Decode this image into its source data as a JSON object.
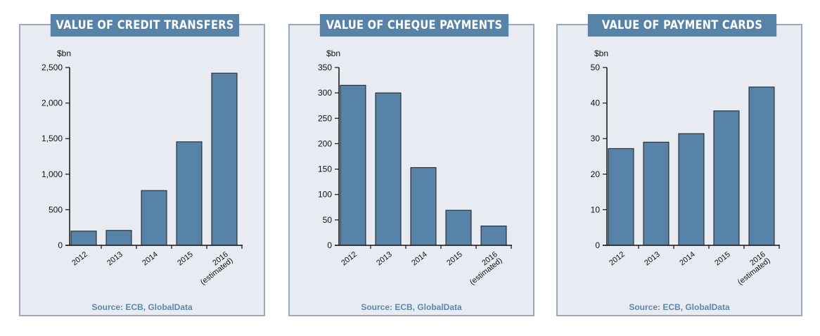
{
  "source_text": "Source: ECB, GlobalData",
  "bar_color": "#5683a7",
  "title_bg": "#5683a7",
  "panel_bg": "#e8ecf2",
  "chart_data": [
    {
      "type": "bar",
      "title": "VALUE OF CREDIT TRANSFERS",
      "unit": "$bn",
      "categories": [
        "2012",
        "2013",
        "2014",
        "2015",
        "2016 (estimated)"
      ],
      "category_lines": [
        [
          "2012"
        ],
        [
          "2013"
        ],
        [
          "2014"
        ],
        [
          "2015"
        ],
        [
          "2016",
          "(estimated)"
        ]
      ],
      "values": [
        200,
        210,
        770,
        1455,
        2420
      ],
      "ylim": [
        0,
        2500
      ],
      "yticks": [
        0,
        500,
        1000,
        1500,
        2000,
        2500
      ],
      "ytick_labels": [
        "0",
        "500",
        "1,000",
        "1,500",
        "2,000",
        "2,500"
      ],
      "xlabel": "",
      "ylabel": ""
    },
    {
      "type": "bar",
      "title": "VALUE OF CHEQUE PAYMENTS",
      "unit": "$bn",
      "categories": [
        "2012",
        "2013",
        "2014",
        "2015",
        "2016 (estimated)"
      ],
      "category_lines": [
        [
          "2012"
        ],
        [
          "2013"
        ],
        [
          "2014"
        ],
        [
          "2015"
        ],
        [
          "2016",
          "(estimated)"
        ]
      ],
      "values": [
        315,
        300,
        153,
        69,
        38
      ],
      "ylim": [
        0,
        350
      ],
      "yticks": [
        0,
        50,
        100,
        150,
        200,
        250,
        300,
        350
      ],
      "ytick_labels": [
        "0",
        "50",
        "100",
        "150",
        "200",
        "250",
        "300",
        "350"
      ],
      "xlabel": "",
      "ylabel": ""
    },
    {
      "type": "bar",
      "title": "VALUE OF PAYMENT CARDS",
      "unit": "$bn",
      "categories": [
        "2012",
        "2013",
        "2014",
        "2015",
        "2016 (estimated)"
      ],
      "category_lines": [
        [
          "2012"
        ],
        [
          "2013"
        ],
        [
          "2014"
        ],
        [
          "2015"
        ],
        [
          "2016",
          "(estimated)"
        ]
      ],
      "values": [
        27.2,
        29,
        31.4,
        37.8,
        44.5
      ],
      "ylim": [
        0,
        50
      ],
      "yticks": [
        0,
        10,
        20,
        30,
        40,
        50
      ],
      "ytick_labels": [
        "0",
        "10",
        "20",
        "30",
        "40",
        "50"
      ],
      "xlabel": "",
      "ylabel": ""
    }
  ]
}
